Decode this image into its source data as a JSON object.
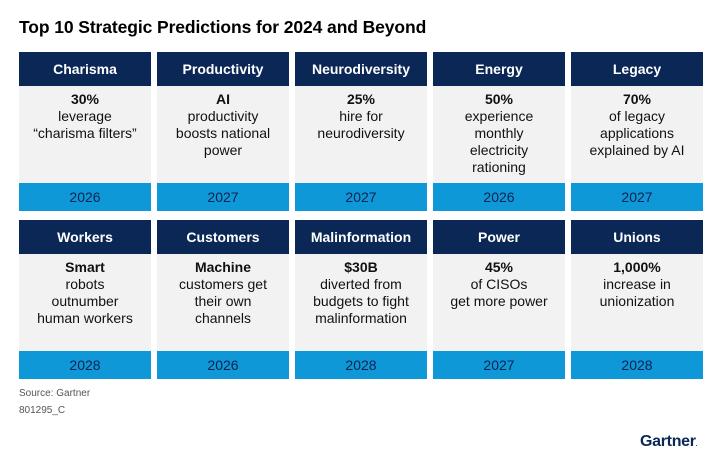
{
  "title": "Top 10 Strategic Predictions for 2024 and Beyond",
  "colors": {
    "header": "#0a2756",
    "body": "#f2f2f2",
    "year": "#0f98d8"
  },
  "predictions": [
    {
      "category": "Charisma",
      "lead": "30%",
      "desc": "leverage\n“charisma filters”",
      "year": "2026"
    },
    {
      "category": "Productivity",
      "lead": "AI",
      "desc": "productivity\nboosts national\npower",
      "year": "2027"
    },
    {
      "category": "Neurodiversity",
      "lead": "25%",
      "desc": "hire for\nneurodiversity",
      "year": "2027"
    },
    {
      "category": "Energy",
      "lead": "50%",
      "desc": "experience\nmonthly\nelectricity\nrationing",
      "year": "2026"
    },
    {
      "category": "Legacy",
      "lead": "70%",
      "desc": "of legacy\napplications\nexplained by AI",
      "year": "2027"
    },
    {
      "category": "Workers",
      "lead": "Smart",
      "desc": "robots\noutnumber\nhuman workers",
      "year": "2028"
    },
    {
      "category": "Customers",
      "lead": "Machine",
      "desc": "customers get\ntheir own\nchannels",
      "year": "2026"
    },
    {
      "category": "Malinformation",
      "lead": "$30B",
      "desc": "diverted from\nbudgets to fight\nmalinformation",
      "year": "2028"
    },
    {
      "category": "Power",
      "lead": "45%",
      "desc": "of CISOs\nget more power",
      "year": "2027"
    },
    {
      "category": "Unions",
      "lead": "1,000%",
      "desc": "increase in\nunionization",
      "year": "2028"
    }
  ],
  "footer": {
    "source": "Source: Gartner",
    "code": "801295_C",
    "logo": "Gartner"
  }
}
